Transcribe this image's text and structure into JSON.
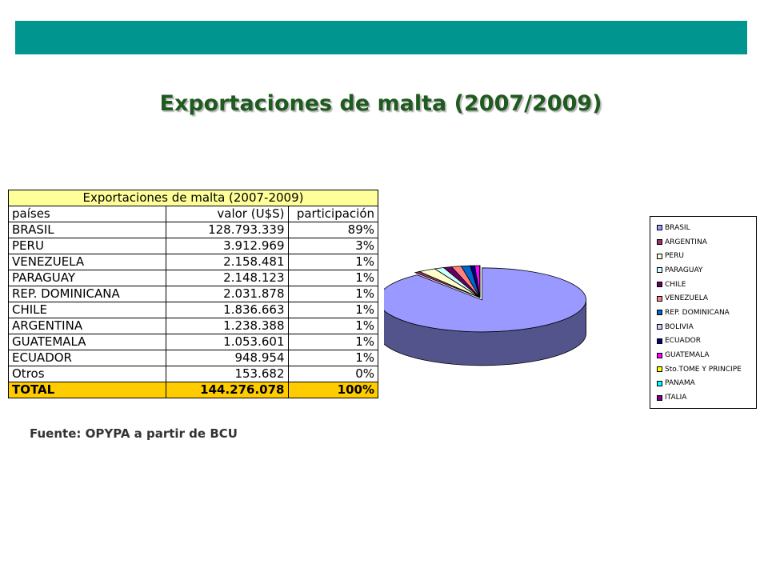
{
  "slide": {
    "title": "Exportaciones de malta (2007/2009)",
    "source": "Fuente: OPYPA a partir de BCU"
  },
  "table": {
    "title": "Exportaciones de malta (2007-2009)",
    "headers": [
      "países",
      "valor (U$S)",
      "participación"
    ],
    "rows": [
      [
        "BRASIL",
        "128.793.339",
        "89%"
      ],
      [
        "PERU",
        "3.912.969",
        "3%"
      ],
      [
        "VENEZUELA",
        "2.158.481",
        "1%"
      ],
      [
        "PARAGUAY",
        "2.148.123",
        "1%"
      ],
      [
        "REP. DOMINICANA",
        "2.031.878",
        "1%"
      ],
      [
        "CHILE",
        "1.836.663",
        "1%"
      ],
      [
        "ARGENTINA",
        "1.238.388",
        "1%"
      ],
      [
        "GUATEMALA",
        "1.053.601",
        "1%"
      ],
      [
        "ECUADOR",
        "948.954",
        "1%"
      ],
      [
        "Otros",
        "153.682",
        "0%"
      ]
    ],
    "total": [
      "TOTAL",
      "144.276.078",
      "100%"
    ],
    "colors": {
      "title_bg": "#ffff99",
      "total_bg": "#ffcc00"
    }
  },
  "chart_data": {
    "type": "pie",
    "style": "3d-exploded-first",
    "legend_position": "right",
    "categories": [
      "BRASIL",
      "ARGENTINA",
      "PERU",
      "PARAGUAY",
      "CHILE",
      "VENEZUELA",
      "REP. DOMINICANA",
      "BOLIVIA",
      "ECUADOR",
      "GUATEMALA",
      "Sto.TOME Y PRINCIPE",
      "PANAMA",
      "ITALIA"
    ],
    "values": [
      128793339,
      1238388,
      3912969,
      2148123,
      1836663,
      2158481,
      2031878,
      60000,
      948954,
      1053601,
      40000,
      30000,
      23682
    ],
    "colors": [
      "#9999ff",
      "#993366",
      "#ffffcc",
      "#ccffff",
      "#660066",
      "#ff8080",
      "#0066cc",
      "#ccccff",
      "#000080",
      "#ff00ff",
      "#ffff00",
      "#00ffff",
      "#800080"
    ]
  },
  "colors": {
    "top_bar": "#00968f",
    "title": "#1f5a1f"
  }
}
